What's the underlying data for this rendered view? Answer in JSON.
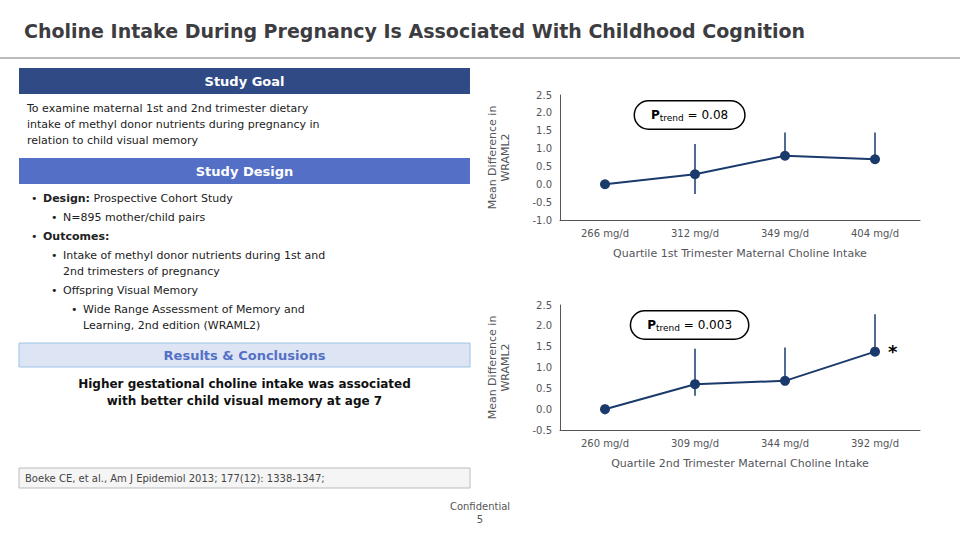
{
  "chart_data": [
    {
      "type": "line",
      "title": "Choline Intake During Pregnancy Is Associated With Childhood Cognition",
      "categories": [
        "266 mg/d",
        "312 mg/d",
        "349 mg/d",
        "404 mg/d"
      ],
      "values": [
        0.0,
        0.28,
        0.8,
        0.7
      ],
      "yerr_low": [
        0.0,
        0.55,
        0.0,
        0.0
      ],
      "yerr_high": [
        0.0,
        0.85,
        0.65,
        0.75
      ],
      "color": "#1a3a6b",
      "xlabel": "Quartile 1st Trimester Maternal Choline Intake",
      "ylabel": "Mean Difference in\nWRAML2",
      "ylim": [
        -1.0,
        2.5
      ],
      "yticks": [
        {
          "value": -1.0,
          "label": "-1.0"
        },
        -0.5,
        {
          "value": 0.0,
          "label": "0.0"
        },
        0.5,
        {
          "value": 1.0,
          "label": "1.0"
        },
        1.5,
        {
          "value": 2.0,
          "label": "2.0"
        },
        2.5
      ],
      "grid": false,
      "annotations": [
        "P trend = 0.08",
        [
          "Study Goal",
          "To examine maternal 1st and 2nd trimester dietary\nintake of methyl donor nutrients during pregnancy in\nrelation to child visual memory"
        ],
        [
          "Study Design",
          "• Design: Prospective Cohort Study",
          "• N=895 mother/child pairs",
          "• Outcomes:",
          "• Intake of methyl donor nutrients during 1st and\n2nd trimesters of pregnancy",
          "• Offspring Visual Memory",
          "• Wide Range Assessment of Memory and\nLearning, 2nd edition (WRAML2)"
        ],
        [
          "Results & Conclusions",
          "Higher gestational choline intake was associated\nwith better child visual memory at age 7"
        ],
        [
          "Boeke CE, et al., Am J Epidemiol 2013; 177(12): 1338-1347;"
        ],
        [
          "Confidential\n5"
        ]
      ]
    },
    {
      "type": "line",
      "categories": [
        "260 mg/d",
        "309 mg/d",
        "344 mg/d",
        "392 mg/d"
      ],
      "values": [
        0.0,
        0.6,
        0.68,
        1.38
      ],
      "yerr_low": [
        0.12,
        0.28,
        0.05,
        0.0
      ],
      "yerr_high": [
        0.12,
        0.85,
        0.8,
        0.9
      ],
      "color": "#1a3a6b",
      "xlabel": "Quartile 2nd Trimester Maternal Choline Intake",
      "ylabel": "Mean Difference in\nWRAML2",
      "ylim": [
        -0.5,
        2.5
      ],
      "yticks": [
        -0.5,
        {
          "value": 0.0,
          "label": "0.0"
        },
        0.5,
        {
          "value": 1.0,
          "label": "1.0"
        },
        1.5,
        {
          "value": 2.0,
          "label": "2.0"
        },
        2.5
      ],
      "grid": false,
      "annotations": [
        "P trend = 0.003",
        "*"
      ]
    }
  ]
}
